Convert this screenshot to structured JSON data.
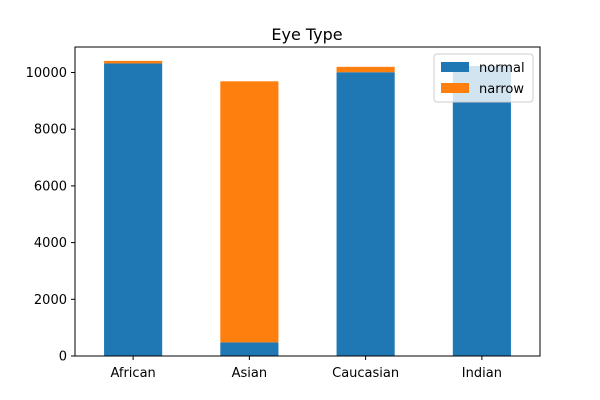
{
  "chart_data": {
    "type": "bar",
    "stacked": true,
    "title": "Eye Type",
    "xlabel": "",
    "ylabel": "",
    "categories": [
      "African",
      "Asian",
      "Caucasian",
      "Indian"
    ],
    "series": [
      {
        "name": "normal",
        "color": "#1f77b4",
        "values": [
          10320,
          480,
          10010,
          10230
        ]
      },
      {
        "name": "narrow",
        "color": "#ff7f0e",
        "values": [
          90,
          9210,
          190,
          0
        ]
      }
    ],
    "ylim": [
      0,
      10900
    ],
    "yticks": [
      0,
      2000,
      4000,
      6000,
      8000,
      10000
    ],
    "grid": false,
    "legend_position": "top-right"
  }
}
